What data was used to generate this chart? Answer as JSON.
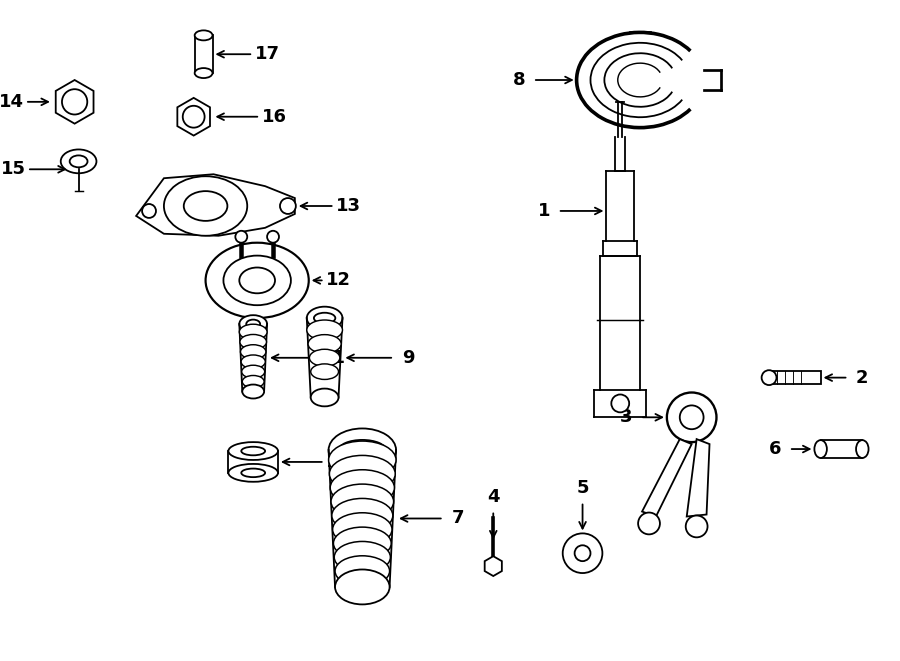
{
  "bg_color": "#ffffff",
  "lc": "#000000",
  "lw": 1.3,
  "fig_w": 9.0,
  "fig_h": 6.61,
  "dpi": 100,
  "fs": 13
}
